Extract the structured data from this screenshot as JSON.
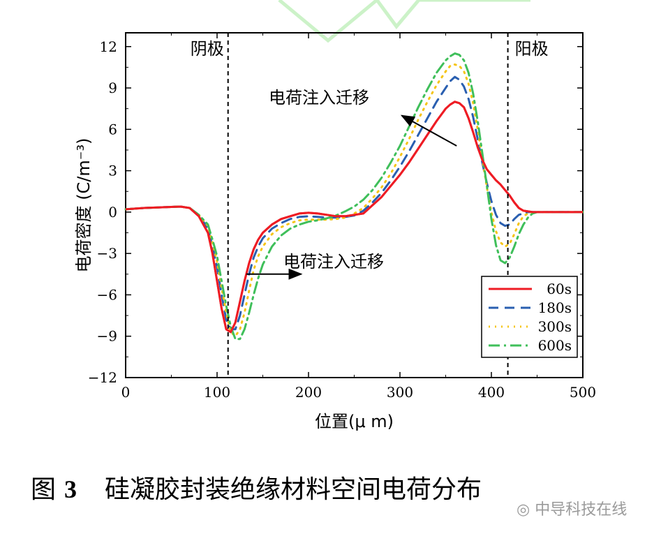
{
  "chart_data": {
    "type": "line",
    "title": "",
    "xlabel": "位置(μ m)",
    "ylabel": "电荷密度 (C/m⁻³)",
    "xlim": [
      0,
      500
    ],
    "ylim": [
      -12,
      13
    ],
    "xticks": [
      0,
      100,
      200,
      300,
      400,
      500
    ],
    "yticks": [
      -12,
      -9,
      -6,
      -3,
      0,
      3,
      6,
      9,
      12
    ],
    "x": [
      0,
      20,
      40,
      60,
      70,
      80,
      90,
      95,
      100,
      105,
      110,
      115,
      120,
      125,
      130,
      135,
      140,
      145,
      150,
      160,
      170,
      180,
      190,
      200,
      210,
      220,
      230,
      240,
      250,
      260,
      270,
      280,
      290,
      300,
      310,
      320,
      330,
      340,
      350,
      355,
      360,
      365,
      370,
      375,
      380,
      385,
      390,
      395,
      400,
      405,
      410,
      415,
      420,
      425,
      430,
      435,
      440,
      445,
      450,
      460,
      470,
      480,
      500
    ],
    "series": [
      {
        "name": "60s",
        "color": "#ee1c24",
        "dash": "solid",
        "values": [
          0.2,
          0.3,
          0.35,
          0.4,
          0.3,
          -0.3,
          -1.5,
          -3,
          -5,
          -7,
          -8.5,
          -8.7,
          -8,
          -6.5,
          -5,
          -3.7,
          -2.7,
          -2,
          -1.5,
          -0.9,
          -0.5,
          -0.3,
          -0.1,
          -0.05,
          -0.1,
          -0.2,
          -0.3,
          -0.3,
          -0.2,
          -0.1,
          0.5,
          1.1,
          1.9,
          2.7,
          3.6,
          4.6,
          5.6,
          6.6,
          7.5,
          7.8,
          8.0,
          7.9,
          7.6,
          6.8,
          5.8,
          4.7,
          3.8,
          3.1,
          2.7,
          2.3,
          2.0,
          1.6,
          1.2,
          0.7,
          0.3,
          0.1,
          0.05,
          0,
          0,
          0,
          0,
          0,
          0
        ]
      },
      {
        "name": "180s",
        "color": "#2a5fb0",
        "dash": "14,9",
        "values": [
          0.2,
          0.3,
          0.35,
          0.4,
          0.3,
          -0.2,
          -1.2,
          -2.5,
          -4,
          -6,
          -7.8,
          -8.5,
          -8.5,
          -7.5,
          -6,
          -4.5,
          -3.3,
          -2.5,
          -1.9,
          -1.2,
          -0.8,
          -0.5,
          -0.35,
          -0.3,
          -0.35,
          -0.4,
          -0.4,
          -0.35,
          -0.25,
          0.1,
          0.7,
          1.4,
          2.3,
          3.3,
          4.4,
          5.6,
          6.8,
          8.0,
          9.0,
          9.5,
          9.8,
          9.6,
          9.1,
          8.2,
          6.9,
          5.3,
          3.6,
          2.1,
          0.8,
          -0.2,
          -0.8,
          -1.0,
          -0.9,
          -0.5,
          -0.2,
          -0.1,
          0,
          0,
          0,
          0,
          0,
          0,
          0
        ]
      },
      {
        "name": "300s",
        "color": "#f5c518",
        "dash": "2,7",
        "values": [
          0.2,
          0.3,
          0.35,
          0.4,
          0.3,
          -0.2,
          -1,
          -2.2,
          -3.6,
          -5.5,
          -7.3,
          -8.7,
          -9.0,
          -8.5,
          -7.3,
          -5.7,
          -4.2,
          -3.2,
          -2.5,
          -1.6,
          -1.1,
          -0.8,
          -0.6,
          -0.55,
          -0.55,
          -0.55,
          -0.5,
          -0.4,
          -0.1,
          0.3,
          1.0,
          1.8,
          2.8,
          4.0,
          5.3,
          6.7,
          8.0,
          9.2,
          10.2,
          10.6,
          10.7,
          10.6,
          10.2,
          9.3,
          7.9,
          6.0,
          3.9,
          1.8,
          0,
          -1.4,
          -2.2,
          -2.5,
          -2.3,
          -1.6,
          -0.8,
          -0.3,
          -0.1,
          0,
          0,
          0,
          0,
          0,
          0
        ]
      },
      {
        "name": "600s",
        "color": "#3fbf5a",
        "dash": "16,6,3,6",
        "values": [
          0.2,
          0.3,
          0.35,
          0.4,
          0.3,
          -0.2,
          -0.9,
          -2,
          -3.2,
          -5,
          -6.8,
          -8.3,
          -9.2,
          -9.2,
          -8.5,
          -7.3,
          -6,
          -4.8,
          -3.8,
          -2.5,
          -1.7,
          -1.2,
          -0.9,
          -0.7,
          -0.6,
          -0.45,
          -0.25,
          0.05,
          0.4,
          0.9,
          1.6,
          2.5,
          3.6,
          4.8,
          6.2,
          7.6,
          8.9,
          10.1,
          11.0,
          11.3,
          11.5,
          11.4,
          11.0,
          10.1,
          8.6,
          6.6,
          4.3,
          1.9,
          -0.5,
          -2.4,
          -3.5,
          -3.7,
          -3.3,
          -2.5,
          -1.6,
          -0.9,
          -0.4,
          -0.1,
          0,
          0,
          0,
          0,
          0
        ]
      }
    ],
    "annotations": {
      "cathode": {
        "label": "阴极",
        "x": 112
      },
      "anode": {
        "label": "阳极",
        "x": 418
      },
      "arrow_upper": {
        "label": "电荷注入迁移",
        "from": [
          362,
          4.8
        ],
        "to": [
          302,
          7.0
        ]
      },
      "arrow_lower": {
        "label": "电荷注入迁移",
        "from": [
          132,
          -4.5
        ],
        "to": [
          192,
          -4.5
        ]
      }
    },
    "legend_position": "bottom-right"
  },
  "caption": {
    "figure": "图",
    "number": "3",
    "text": "硅凝胶封装绝缘材料空间电荷分布"
  },
  "watermark": "中导科技在线"
}
